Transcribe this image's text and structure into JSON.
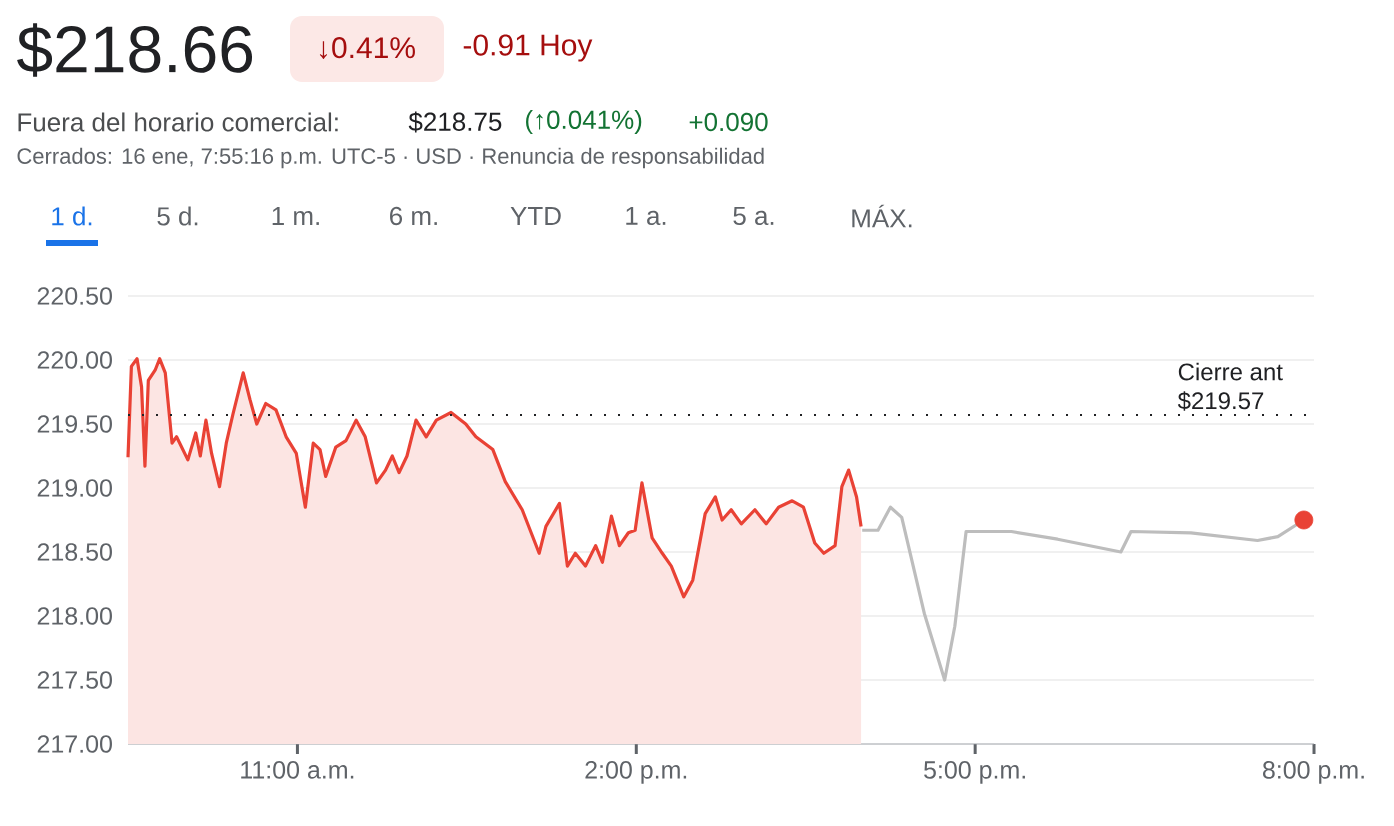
{
  "chart_data": {
    "type": "area",
    "title": "$218.66",
    "annotations": [
      "↓0.41%",
      "-0.91 Hoy",
      "Fuera del horario comercial:",
      "$218.75",
      "(↑0.041%)",
      "+0.090",
      "Cerrados: 16 ene, 7:55:16 p.m. UTC-5 · USD · Renuncia de responsabilidad",
      "1 d.",
      "5 d.",
      "1 m.",
      "6 m.",
      "YTD",
      "1 a.",
      "5 a.",
      "MÁX."
    ],
    "series": [
      {
        "color": "#e94235",
        "x": [
          9.5,
          9.53,
          9.58,
          9.62,
          9.65,
          9.68,
          9.74,
          9.78,
          9.83,
          9.89,
          9.93,
          10.03,
          10.1,
          10.14,
          10.19,
          10.24,
          10.31,
          10.37,
          10.43,
          10.52,
          10.58,
          10.64,
          10.72,
          10.81,
          10.9,
          10.99,
          11.07,
          11.14,
          11.2,
          11.25,
          11.34,
          11.43,
          11.52,
          11.6,
          11.7,
          11.78,
          11.84,
          11.9,
          11.97,
          12.05,
          12.14,
          12.23,
          12.36,
          12.49,
          12.58,
          12.73,
          12.84,
          12.99,
          13.14,
          13.2,
          13.32,
          13.39,
          13.46,
          13.55,
          13.64,
          13.7,
          13.78,
          13.85,
          13.93,
          13.99,
          14.05,
          14.14,
          14.23,
          14.31,
          14.42,
          14.5,
          14.61,
          14.7,
          14.76,
          14.84,
          14.93,
          15.05,
          15.15,
          15.26,
          15.38,
          15.48,
          15.58,
          15.66,
          15.76,
          15.82,
          15.88,
          15.95,
          15.99
        ],
        "values": [
          219.24,
          219.95,
          220.01,
          219.79,
          219.17,
          219.84,
          219.92,
          220.01,
          219.9,
          219.35,
          219.4,
          219.22,
          219.43,
          219.25,
          219.53,
          219.27,
          219.01,
          219.35,
          219.58,
          219.9,
          219.69,
          219.5,
          219.66,
          219.61,
          219.4,
          219.27,
          218.85,
          219.35,
          219.3,
          219.09,
          219.32,
          219.37,
          219.53,
          219.4,
          219.04,
          219.14,
          219.25,
          219.12,
          219.25,
          219.53,
          219.4,
          219.53,
          219.59,
          219.5,
          219.4,
          219.3,
          219.05,
          218.83,
          218.49,
          218.7,
          218.88,
          218.39,
          218.49,
          218.39,
          218.55,
          218.42,
          218.78,
          218.55,
          218.65,
          218.67,
          219.04,
          218.61,
          218.49,
          218.39,
          218.15,
          218.28,
          218.8,
          218.93,
          218.75,
          218.83,
          218.72,
          218.83,
          218.72,
          218.85,
          218.9,
          218.85,
          218.57,
          218.49,
          218.55,
          219.01,
          219.14,
          218.93,
          218.7
        ]
      },
      {
        "type": "line",
        "color": "#bdbdbd",
        "x": [
          16.0,
          16.14,
          16.25,
          16.35,
          16.55,
          16.73,
          16.82,
          16.92,
          17.32,
          17.73,
          18.29,
          18.38,
          18.91,
          19.5,
          19.68,
          19.91
        ],
        "values": [
          218.67,
          218.67,
          218.85,
          218.77,
          218.02,
          217.5,
          217.92,
          218.66,
          218.66,
          218.6,
          218.5,
          218.66,
          218.65,
          218.59,
          218.62,
          218.75
        ]
      },
      {
        "type": "scatter",
        "color": "#e94235",
        "marker": "circle",
        "x": [
          19.91
        ],
        "values": [
          218.75
        ]
      }
    ],
    "xlim": [
      9.5,
      20
    ],
    "xticks": [
      {
        "value": 11,
        "label": "11:00 a.m."
      },
      {
        "value": 14,
        "label": "2:00 p.m."
      },
      {
        "value": 17,
        "label": "5:00 p.m."
      },
      {
        "value": 20,
        "label": "8:00 p.m."
      }
    ],
    "ylim": [
      217,
      220.5
    ],
    "yticks": [
      {
        "value": 217,
        "label": "217.00"
      },
      {
        "value": 217.5,
        "label": "217.50"
      },
      {
        "value": 218,
        "label": "218.00"
      },
      {
        "value": 218.5,
        "label": "218.50"
      },
      {
        "value": 219,
        "label": "219.00"
      },
      {
        "value": 219.5,
        "label": "219.50"
      },
      {
        "value": 220,
        "label": "220.00"
      },
      {
        "value": 220.5,
        "label": "220.50"
      }
    ],
    "ref_lines": [
      {
        "axis": "y",
        "value": 219.57,
        "label": "Cierre ant $219.57",
        "color": "#202124",
        "line_style": "dotted"
      }
    ],
    "grid": "y"
  }
}
